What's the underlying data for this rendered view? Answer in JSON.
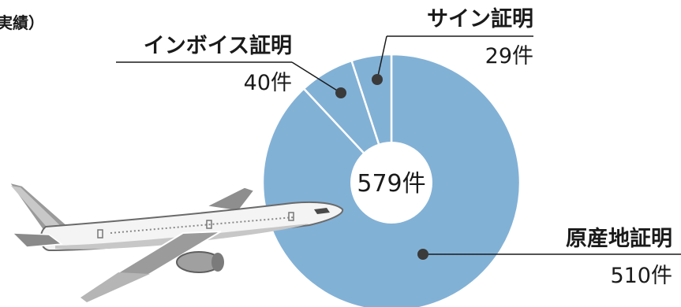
{
  "page": {
    "corner_text": "実績）"
  },
  "chart_data": {
    "type": "pie",
    "total_label": "579件",
    "categories": [
      "原産地証明",
      "インボイス証明",
      "サイン証明"
    ],
    "values": [
      510,
      40,
      29
    ],
    "value_labels": [
      "510件",
      "40件",
      "29件"
    ],
    "colors": [
      "#82b1d6",
      "#82b1d6",
      "#82b1d6"
    ],
    "legend": "none",
    "grid": false
  },
  "illustration": {
    "icon": "airplane-icon"
  }
}
